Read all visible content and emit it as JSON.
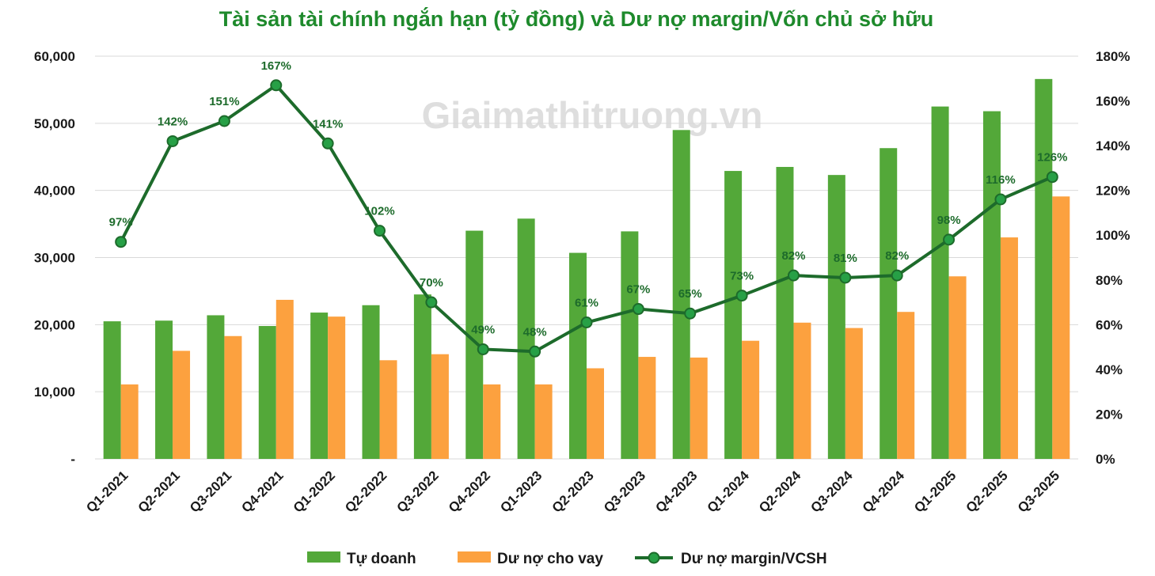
{
  "chart_data": {
    "type": "bar",
    "title": "Tài sản tài chính ngắn hạn (tỷ đồng) và Dư nợ margin/Vốn chủ sở hữu",
    "watermark": "Giaimathitruong.vn",
    "categories": [
      "Q1-2021",
      "Q2-2021",
      "Q3-2021",
      "Q4-2021",
      "Q1-2022",
      "Q2-2022",
      "Q3-2022",
      "Q4-2022",
      "Q1-2023",
      "Q2-2023",
      "Q3-2023",
      "Q4-2023",
      "Q1-2024",
      "Q2-2024",
      "Q3-2024",
      "Q4-2024",
      "Q1-2025",
      "Q2-2025",
      "Q3-2025"
    ],
    "series": [
      {
        "name": "Tự doanh",
        "type": "bar",
        "axis": "left",
        "color": "#53a839",
        "values": [
          20500,
          20600,
          21400,
          19800,
          21800,
          22900,
          24500,
          34000,
          35800,
          30700,
          33900,
          49000,
          42900,
          43500,
          42300,
          46300,
          52500,
          51800,
          56600
        ]
      },
      {
        "name": "Dư nợ cho vay",
        "type": "bar",
        "axis": "right-none",
        "color": "#fca13f",
        "values": [
          11100,
          16100,
          18300,
          23700,
          21200,
          14700,
          15600,
          11100,
          11100,
          13500,
          15200,
          15100,
          17600,
          20300,
          19500,
          21900,
          27200,
          33000,
          39100
        ]
      },
      {
        "name": "Dư nợ margin/VCSH",
        "type": "line",
        "axis": "right",
        "color": "#1d6b2b",
        "marker_color": "#27a046",
        "values": [
          97,
          142,
          151,
          167,
          141,
          102,
          70,
          49,
          48,
          61,
          67,
          65,
          73,
          82,
          81,
          82,
          98,
          116,
          126
        ],
        "labels": [
          "97%",
          "142%",
          "151%",
          "167%",
          "141%",
          "102%",
          "70%",
          "49%",
          "48%",
          "61%",
          "67%",
          "65%",
          "73%",
          "82%",
          "81%",
          "82%",
          "98%",
          "116%",
          "126%"
        ]
      }
    ],
    "y_left": {
      "min": 0,
      "max": 60000,
      "ticks": [
        "-",
        "10,000",
        "20,000",
        "30,000",
        "40,000",
        "50,000",
        "60,000"
      ],
      "tick_values": [
        0,
        10000,
        20000,
        30000,
        40000,
        50000,
        60000
      ]
    },
    "y_right": {
      "min": 0,
      "max": 180,
      "ticks": [
        "0%",
        "20%",
        "40%",
        "60%",
        "80%",
        "100%",
        "120%",
        "140%",
        "160%",
        "180%"
      ],
      "tick_values": [
        0,
        20,
        40,
        60,
        80,
        100,
        120,
        140,
        160,
        180
      ]
    },
    "grid": true,
    "legend_position": "bottom",
    "title_color": "#1e8a2c"
  }
}
